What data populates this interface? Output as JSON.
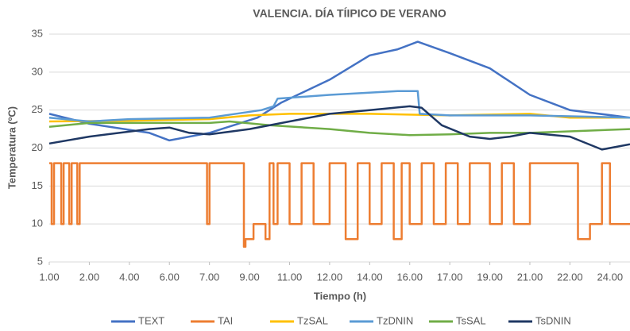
{
  "chart_data": {
    "type": "line",
    "title": "VALENCIA. DÍA TÍIPICO DE VERANO",
    "x_label": "Tiempo (h)",
    "y_label": "Temperatura (ºC)",
    "xlim": [
      0,
      14.5
    ],
    "ylim": [
      5,
      35
    ],
    "yticks": [
      5,
      10,
      15,
      20,
      25,
      30,
      35
    ],
    "xticks": [
      {
        "value": 0,
        "label": "1.00"
      },
      {
        "value": 1,
        "label": "2.00"
      },
      {
        "value": 2,
        "label": "4.00"
      },
      {
        "value": 3,
        "label": "6.00"
      },
      {
        "value": 4,
        "label": "7.00"
      },
      {
        "value": 5,
        "label": "9.00"
      },
      {
        "value": 6,
        "label": "11.00"
      },
      {
        "value": 7,
        "label": "12.00"
      },
      {
        "value": 8,
        "label": "14.00"
      },
      {
        "value": 9,
        "label": "16.00"
      },
      {
        "value": 10,
        "label": "17.00"
      },
      {
        "value": 11,
        "label": "19.00"
      },
      {
        "value": 12,
        "label": "21.00"
      },
      {
        "value": 13,
        "label": "22.00"
      },
      {
        "value": 14,
        "label": "24.00"
      }
    ],
    "grid": true,
    "legend": "bottom",
    "series": [
      {
        "name": "TEXT",
        "color": "#4472c4",
        "x": [
          0,
          1,
          2.5,
          3,
          4,
          5.2,
          5.8,
          7,
          8,
          8.7,
          9.2,
          10,
          11,
          12,
          13,
          14.5
        ],
        "values": [
          24.5,
          23.2,
          22,
          21,
          22,
          24,
          26,
          29,
          32.2,
          33,
          34,
          32.5,
          30.5,
          27,
          25,
          24
        ]
      },
      {
        "name": "TAI",
        "color": "#ed7d31",
        "x": [
          0,
          0.06,
          0.06,
          0.12,
          0.12,
          0.3,
          0.3,
          0.36,
          0.36,
          0.5,
          0.5,
          0.56,
          0.56,
          0.7,
          0.7,
          0.76,
          0.76,
          3.94,
          3.94,
          4.0,
          4.0,
          4.86,
          4.86,
          4.9,
          4.9,
          5.1,
          5.1,
          5.4,
          5.4,
          5.5,
          5.5,
          5.6,
          5.6,
          5.7,
          5.7,
          6.0,
          6.0,
          6.3,
          6.3,
          6.6,
          6.6,
          7.0,
          7.0,
          7.4,
          7.4,
          7.7,
          7.7,
          8.0,
          8.0,
          8.3,
          8.3,
          8.6,
          8.6,
          8.8,
          8.8,
          9.0,
          9.0,
          9.3,
          9.3,
          9.6,
          9.6,
          9.9,
          9.9,
          10.2,
          10.2,
          10.5,
          10.5,
          11.0,
          11.0,
          11.3,
          11.3,
          11.6,
          11.6,
          12.0,
          12.0,
          13.2,
          13.2,
          13.5,
          13.5,
          13.8,
          13.8,
          14.0,
          14.0,
          14.5
        ],
        "values": [
          18,
          18,
          10,
          10,
          18,
          18,
          10,
          10,
          18,
          18,
          10,
          10,
          18,
          18,
          10,
          10,
          18,
          18,
          10,
          10,
          18,
          18,
          7,
          7,
          8,
          8,
          10,
          10,
          8,
          8,
          18,
          18,
          10,
          10,
          18,
          18,
          10,
          10,
          18,
          18,
          10,
          10,
          18,
          18,
          8,
          8,
          18,
          18,
          10,
          10,
          18,
          18,
          8,
          8,
          18,
          18,
          10,
          10,
          18,
          18,
          10,
          10,
          18,
          18,
          10,
          10,
          18,
          18,
          10,
          10,
          18,
          18,
          10,
          10,
          18,
          18,
          8,
          8,
          10,
          10,
          18,
          18,
          10,
          10
        ]
      },
      {
        "name": "TzSAL",
        "color": "#ffc000",
        "x": [
          0,
          2,
          4,
          5,
          6,
          8,
          10,
          12,
          13,
          14.5
        ],
        "values": [
          23.5,
          23.6,
          23.8,
          24.3,
          24.5,
          24.5,
          24.3,
          24.5,
          24,
          24
        ]
      },
      {
        "name": "TzDNIN",
        "color": "#5b9bd5",
        "x": [
          0,
          1,
          2,
          4,
          5.3,
          5.6,
          5.7,
          7,
          8.7,
          9.2,
          9.25,
          10,
          12,
          14.5
        ],
        "values": [
          24,
          23.5,
          23.8,
          24,
          25,
          25.5,
          26.5,
          27,
          27.5,
          27.5,
          24.5,
          24.3,
          24.3,
          24
        ]
      },
      {
        "name": "TsSAL",
        "color": "#70ad47",
        "x": [
          0,
          1,
          4,
          4.5,
          5.5,
          7,
          8,
          9,
          10,
          11,
          12,
          14.5
        ],
        "values": [
          22.8,
          23.3,
          23.3,
          23.5,
          23,
          22.5,
          22,
          21.7,
          21.8,
          22,
          22,
          22.5
        ]
      },
      {
        "name": "TsDNIN",
        "color": "#1f3864",
        "x": [
          0,
          1,
          2.5,
          3,
          3.5,
          4,
          5,
          6,
          7,
          8,
          9,
          9.3,
          9.8,
          10.5,
          11,
          11.5,
          12,
          13,
          13.8,
          14.5
        ],
        "values": [
          20.6,
          21.5,
          22.5,
          22.7,
          22,
          21.8,
          22.5,
          23.5,
          24.5,
          25,
          25.5,
          25.3,
          23,
          21.5,
          21.2,
          21.5,
          22,
          21.5,
          19.8,
          20.5
        ]
      }
    ]
  }
}
